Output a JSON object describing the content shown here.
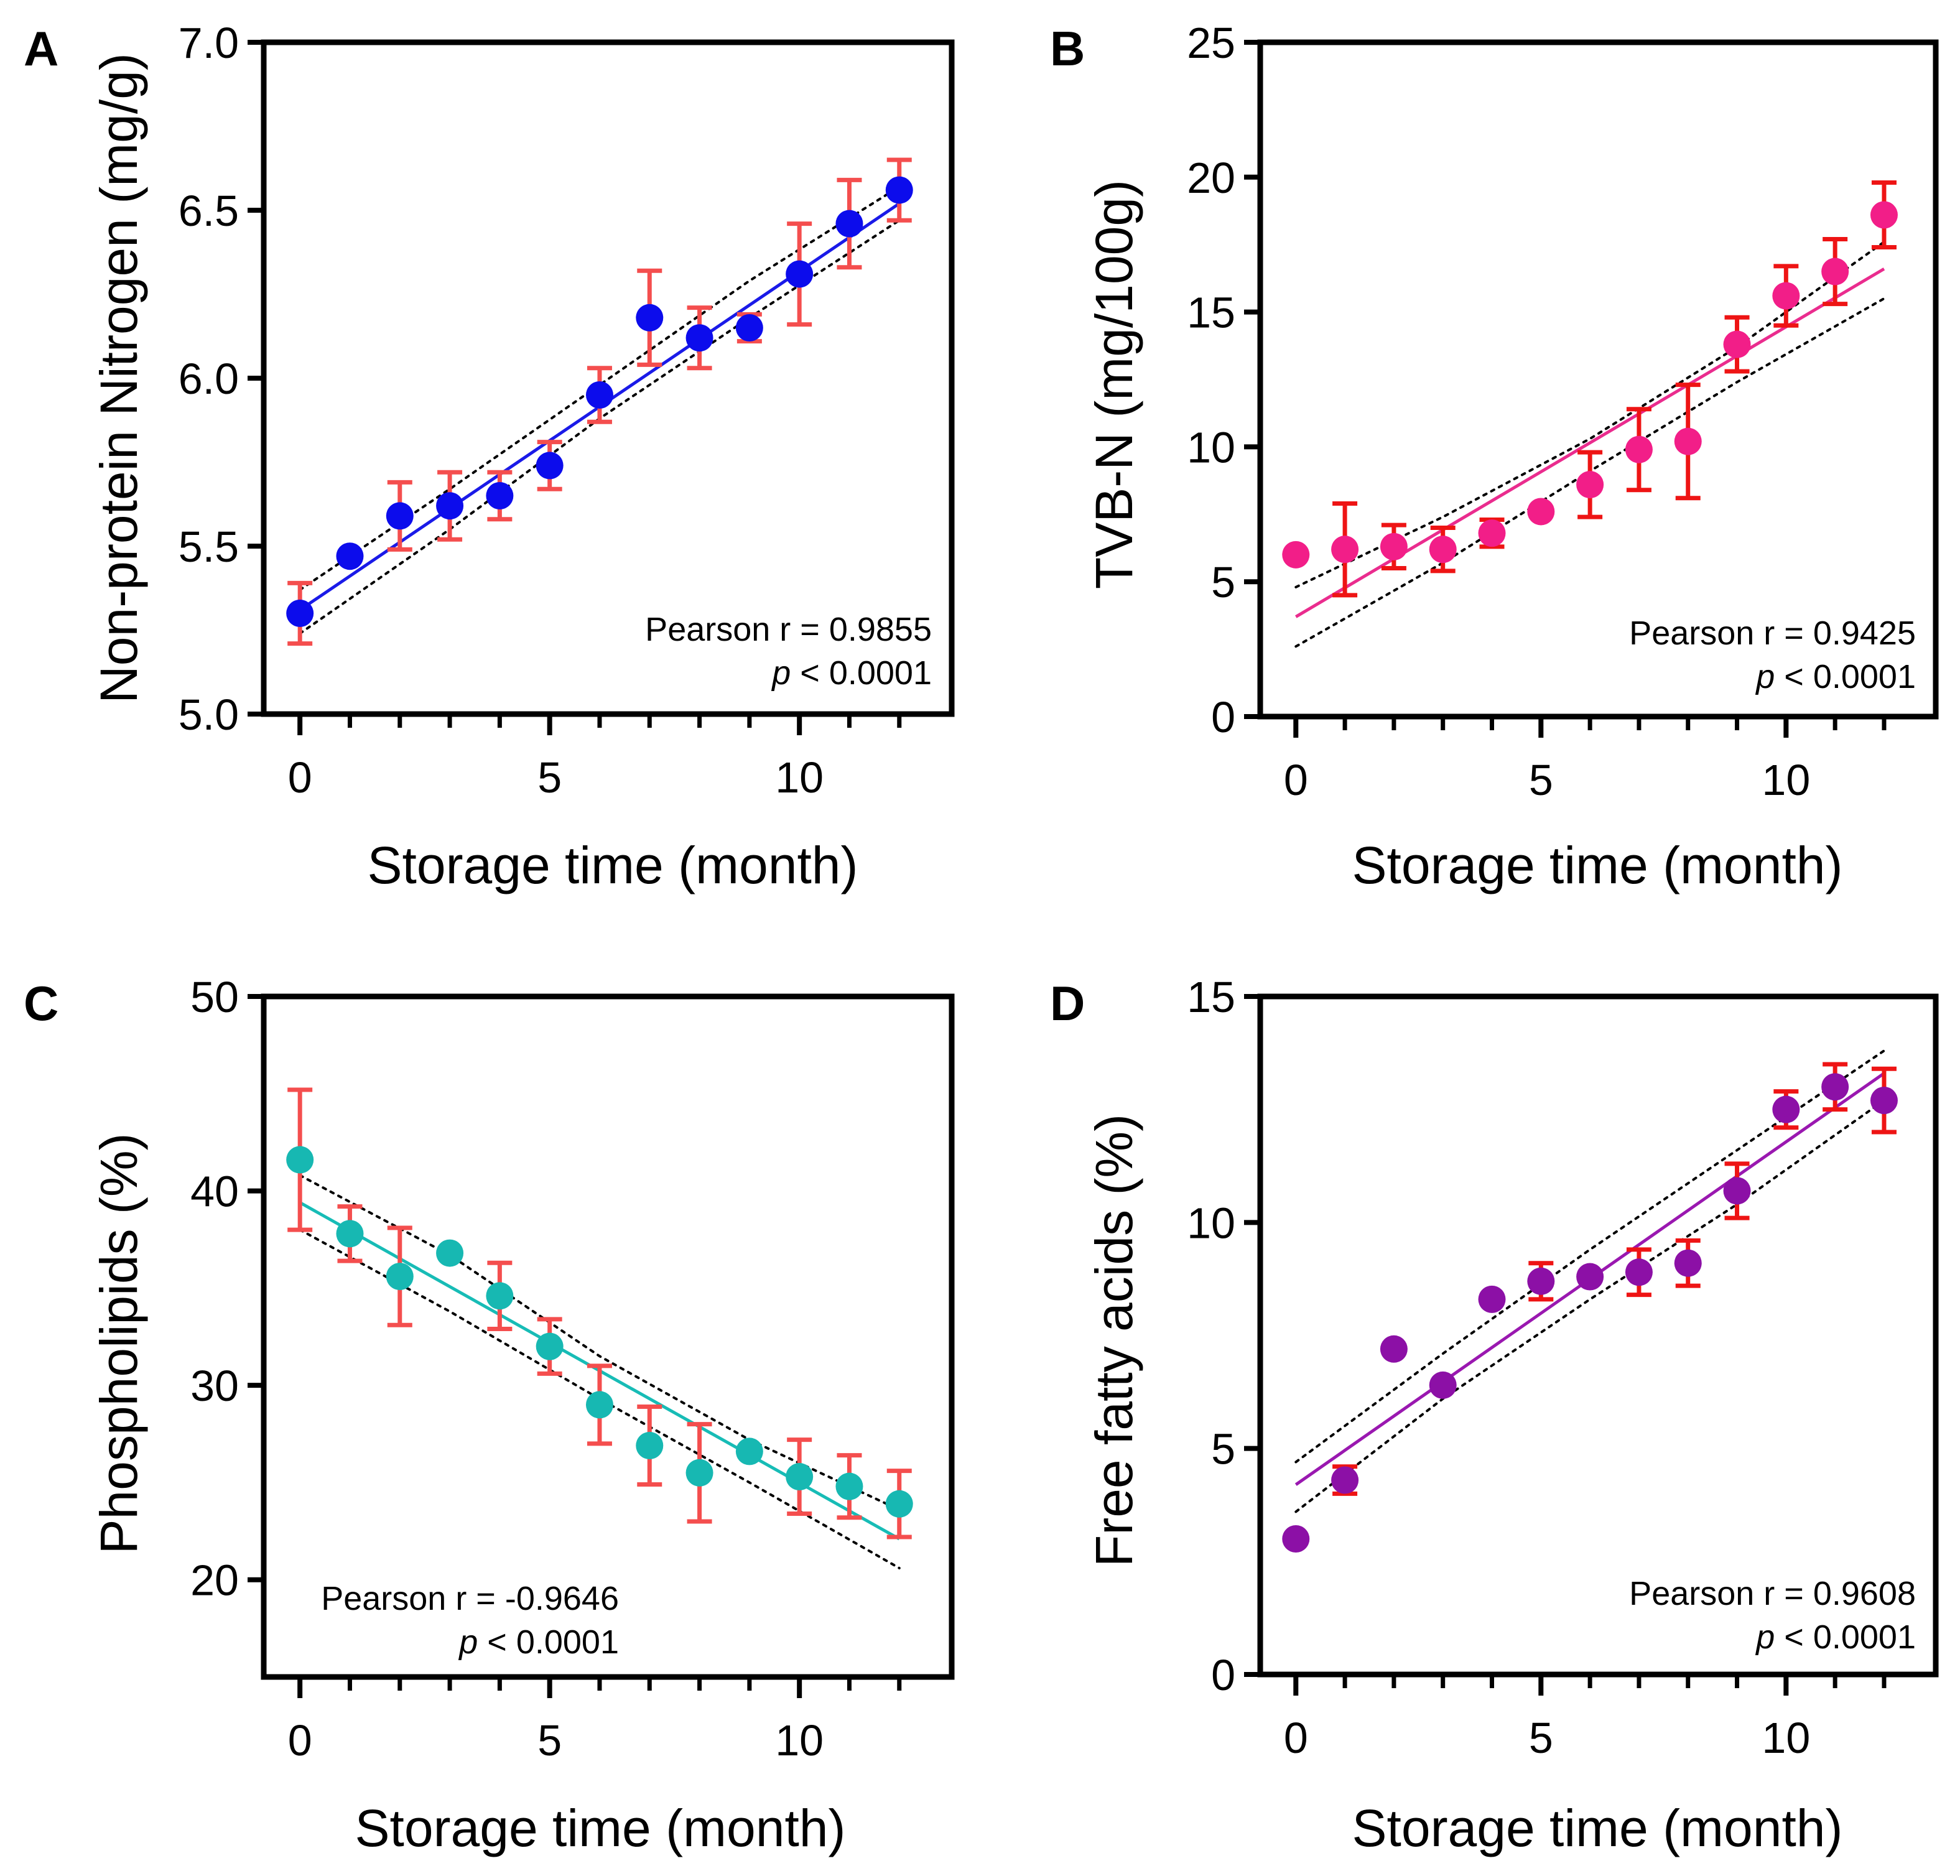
{
  "figure": {
    "background": "#ffffff",
    "error_color": "#f44e4e"
  },
  "chart_data": [
    {
      "type": "scatter",
      "panel": "A",
      "marker_color": "#0c0cec",
      "line_color": "#1a1ae8",
      "error_color": "#f44e4e",
      "x": [
        0,
        1,
        2,
        3,
        4,
        5,
        6,
        7,
        8,
        9,
        10,
        11,
        12
      ],
      "y": [
        5.3,
        5.47,
        5.59,
        5.62,
        5.65,
        5.74,
        5.95,
        6.18,
        6.12,
        6.15,
        6.31,
        6.46,
        6.56
      ],
      "err": [
        0.09,
        0,
        0.1,
        0.1,
        0.07,
        0.07,
        0.08,
        0.14,
        0.09,
        0.04,
        0.15,
        0.13,
        0.09
      ],
      "fit": {
        "x": [
          0,
          12
        ],
        "y": [
          5.31,
          6.52
        ]
      },
      "ci_upper": {
        "x": [
          0,
          3,
          6,
          9,
          12
        ],
        "y": [
          5.37,
          5.67,
          5.98,
          6.29,
          6.57
        ]
      },
      "ci_lower": {
        "x": [
          0,
          3,
          6,
          9,
          12
        ],
        "y": [
          5.24,
          5.55,
          5.88,
          6.18,
          6.47
        ]
      },
      "xlim": [
        -0.6,
        12.8
      ],
      "ylim": [
        5.0,
        7.0
      ],
      "xticks": [
        0,
        5,
        10
      ],
      "xminor": [
        1,
        2,
        3,
        4,
        6,
        7,
        8,
        9,
        11,
        12
      ],
      "yticks": [
        5.0,
        5.5,
        6.0,
        6.5,
        7.0
      ],
      "ytick_labels": [
        "5.0",
        "5.5",
        "6.0",
        "6.5",
        "7.0"
      ],
      "xtick_labels": [
        "0",
        "5",
        "10"
      ],
      "xlabel": "Storage time (month)",
      "ylabel": "Non-protein Nitrogen (mg/g)",
      "stat_line1": "Pearson r = 0.9855",
      "stat_p_symbol": "p",
      "stat_p_value": " < 0.0001",
      "stat_position": "bottom-right"
    },
    {
      "type": "scatter",
      "panel": "B",
      "marker_color": "#f21e88",
      "line_color": "#ea2c8e",
      "error_color": "#ee1414",
      "x": [
        0,
        1,
        2,
        3,
        4,
        5,
        6,
        7,
        8,
        9,
        10,
        11,
        12
      ],
      "y": [
        6.0,
        6.2,
        6.3,
        6.2,
        6.8,
        7.6,
        8.6,
        9.9,
        10.2,
        13.8,
        15.6,
        16.5,
        18.6
      ],
      "err": [
        0,
        1.7,
        0.8,
        0.8,
        0.5,
        0,
        1.2,
        1.5,
        2.1,
        1.0,
        1.1,
        1.2,
        1.2
      ],
      "fit": {
        "x": [
          0,
          12
        ],
        "y": [
          3.7,
          16.6
        ]
      },
      "ci_upper": {
        "x": [
          0,
          3,
          6,
          9,
          12
        ],
        "y": [
          4.8,
          7.4,
          10.3,
          13.7,
          17.6
        ]
      },
      "ci_lower": {
        "x": [
          0,
          3,
          6,
          9,
          12
        ],
        "y": [
          2.6,
          5.7,
          9.1,
          12.4,
          15.5
        ]
      },
      "xlim": [
        -0.6,
        12.8
      ],
      "ylim": [
        0,
        25
      ],
      "xticks": [
        0,
        5,
        10
      ],
      "xminor": [
        1,
        2,
        3,
        4,
        6,
        7,
        8,
        9,
        11,
        12
      ],
      "yticks": [
        0,
        5,
        10,
        15,
        20,
        25
      ],
      "ytick_labels": [
        "0",
        "5",
        "10",
        "15",
        "20",
        "25"
      ],
      "xtick_labels": [
        "0",
        "5",
        "10"
      ],
      "xlabel": "Storage time (month)",
      "ylabel": "TVB-N (mg/100g)",
      "stat_line1": "Pearson r = 0.9425",
      "stat_p_symbol": "p",
      "stat_p_value": " < 0.0001",
      "stat_position": "bottom-right"
    },
    {
      "type": "scatter",
      "panel": "C",
      "marker_color": "#17b8b2",
      "line_color": "#17bcb6",
      "error_color": "#f44e4e",
      "x": [
        0,
        1,
        2,
        3,
        4,
        5,
        6,
        7,
        8,
        9,
        10,
        11,
        12
      ],
      "y": [
        41.6,
        37.8,
        35.6,
        36.8,
        34.6,
        32.0,
        29.0,
        26.9,
        25.5,
        26.6,
        25.3,
        24.8,
        23.9
      ],
      "err": [
        3.6,
        1.4,
        2.5,
        0,
        1.7,
        1.4,
        2.0,
        2.0,
        2.5,
        0,
        1.9,
        1.6,
        1.7
      ],
      "fit": {
        "x": [
          0,
          12
        ],
        "y": [
          39.4,
          22.1
        ]
      },
      "ci_upper": {
        "x": [
          0,
          3,
          6,
          9,
          12
        ],
        "y": [
          40.8,
          36.7,
          31.5,
          27.2,
          23.6
        ]
      },
      "ci_lower": {
        "x": [
          0,
          3,
          6,
          9,
          12
        ],
        "y": [
          38.0,
          33.8,
          29.3,
          25.0,
          20.6
        ]
      },
      "xlim": [
        -0.6,
        12.8
      ],
      "ylim": [
        15,
        50
      ],
      "xticks": [
        0,
        5,
        10
      ],
      "xminor": [
        1,
        2,
        3,
        4,
        6,
        7,
        8,
        9,
        11,
        12
      ],
      "yticks": [
        20,
        30,
        40,
        50
      ],
      "ytick_labels": [
        "20",
        "30",
        "40",
        "50"
      ],
      "xtick_labels": [
        "0",
        "5",
        "10"
      ],
      "xlabel": "Storage time (month)",
      "ylabel": "Phospholipids (%)",
      "stat_line1": "Pearson r = -0.9646",
      "stat_p_symbol": "p",
      "stat_p_value": " < 0.0001",
      "stat_position": "bottom-left"
    },
    {
      "type": "scatter",
      "panel": "D",
      "marker_color": "#8c10a6",
      "line_color": "#9a18b0",
      "error_color": "#ee1414",
      "x": [
        0,
        1,
        2,
        3,
        4,
        5,
        6,
        7,
        8,
        9,
        10,
        11,
        12
      ],
      "y": [
        3.0,
        4.3,
        7.2,
        6.4,
        8.3,
        8.7,
        8.8,
        8.9,
        9.1,
        10.7,
        12.5,
        13.0,
        12.7
      ],
      "err": [
        0,
        0.3,
        0,
        0,
        0,
        0.4,
        0,
        0.5,
        0.5,
        0.6,
        0.4,
        0.5,
        0.7
      ],
      "fit": {
        "x": [
          0,
          12
        ],
        "y": [
          4.2,
          13.3
        ]
      },
      "ci_upper": {
        "x": [
          0,
          3,
          6,
          9,
          12
        ],
        "y": [
          4.7,
          7.1,
          9.4,
          11.6,
          13.8
        ]
      },
      "ci_lower": {
        "x": [
          0,
          3,
          6,
          9,
          12
        ],
        "y": [
          3.6,
          6.1,
          8.3,
          10.4,
          12.7
        ]
      },
      "xlim": [
        -0.6,
        12.8
      ],
      "ylim": [
        0,
        15
      ],
      "xticks": [
        0,
        5,
        10
      ],
      "xminor": [
        1,
        2,
        3,
        4,
        6,
        7,
        8,
        9,
        11,
        12
      ],
      "yticks": [
        0,
        5,
        10,
        15
      ],
      "ytick_labels": [
        "0",
        "5",
        "10",
        "15"
      ],
      "xtick_labels": [
        "0",
        "5",
        "10"
      ],
      "xlabel": "Storage time (month)",
      "ylabel": "Free fatty acids (%)",
      "stat_line1": "Pearson r = 0.9608",
      "stat_p_symbol": "p",
      "stat_p_value": " < 0.0001",
      "stat_position": "bottom-right"
    }
  ]
}
